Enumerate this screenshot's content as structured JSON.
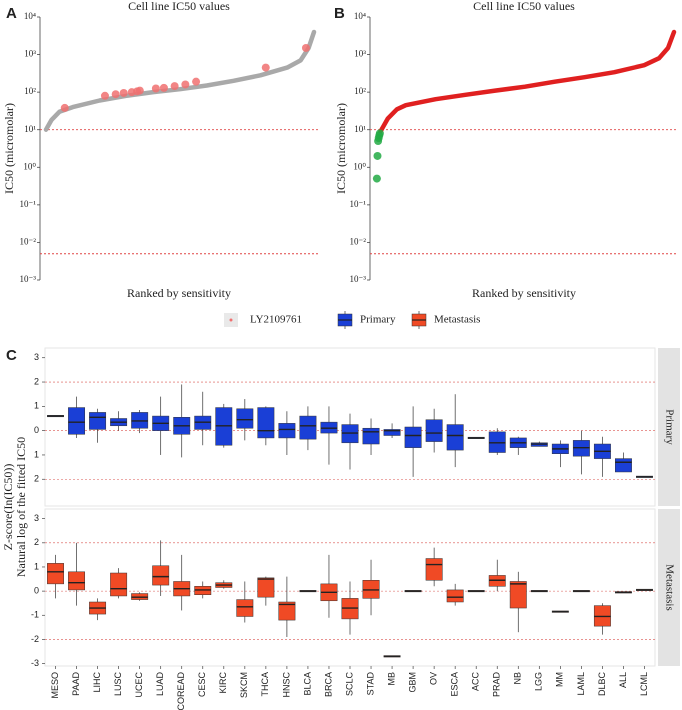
{
  "chart_data": [
    {
      "type": "line",
      "panel": "A",
      "title": "Cell line IC50 values",
      "xlabel": "Ranked by sensitivity",
      "ylabel": "IC50 (micromolar)",
      "log_y": true,
      "ylim": [
        0.001,
        10000
      ],
      "xlim": [
        0,
        100
      ],
      "yticks": [
        {
          "value": 0.001,
          "label": "10⁻³"
        },
        {
          "value": 0.01,
          "label": "10⁻²"
        },
        {
          "value": 0.1,
          "label": "10⁻¹"
        },
        {
          "value": 1,
          "label": "10⁰"
        },
        {
          "value": 10,
          "label": "10¹"
        },
        {
          "value": 100,
          "label": "10²"
        },
        {
          "value": 1000,
          "label": "10³"
        },
        {
          "value": 10000,
          "label": "10⁴"
        }
      ],
      "ref_lines": [
        10,
        0.005
      ],
      "ref_color": "#e04545",
      "series": [
        {
          "name": "LY2109761",
          "color": "#a9a9a9",
          "style": "line",
          "x": [
            0,
            2,
            5,
            10,
            20,
            30,
            40,
            50,
            60,
            70,
            80,
            90,
            95,
            98,
            100
          ],
          "values": [
            10,
            18,
            30,
            40,
            60,
            80,
            100,
            120,
            150,
            200,
            280,
            450,
            700,
            1500,
            4000
          ]
        },
        {
          "color": "#f07070",
          "style": "points",
          "x": [
            7,
            22,
            26,
            29,
            32,
            34,
            35,
            41,
            44,
            48,
            52,
            56,
            82,
            97
          ],
          "values": [
            38,
            80,
            88,
            95,
            100,
            105,
            110,
            125,
            130,
            145,
            160,
            190,
            450,
            1500
          ]
        }
      ]
    },
    {
      "type": "line",
      "panel": "B",
      "title": "Cell line IC50 values",
      "xlabel": "Ranked by sensitivity",
      "ylabel": "IC50 (micromolar)",
      "log_y": true,
      "ylim": [
        0.001,
        10000
      ],
      "xlim": [
        0,
        100
      ],
      "yticks": [
        {
          "value": 0.001,
          "label": "10⁻³"
        },
        {
          "value": 0.01,
          "label": "10⁻²"
        },
        {
          "value": 0.1,
          "label": "10⁻¹"
        },
        {
          "value": 1,
          "label": "10⁰"
        },
        {
          "value": 10,
          "label": "10¹"
        },
        {
          "value": 100,
          "label": "10²"
        },
        {
          "value": 1000,
          "label": "10³"
        },
        {
          "value": 10000,
          "label": "10⁴"
        }
      ],
      "ref_lines": [
        10,
        0.005
      ],
      "ref_color": "#e04545",
      "series": [
        {
          "color": "#e02020",
          "style": "line",
          "x": [
            1.5,
            4,
            7,
            10,
            20,
            30,
            40,
            50,
            60,
            70,
            80,
            90,
            95,
            98,
            100
          ],
          "values": [
            9,
            20,
            35,
            45,
            65,
            85,
            110,
            140,
            190,
            250,
            340,
            520,
            800,
            1500,
            4000
          ]
        },
        {
          "color": "#22aa44",
          "style": "points",
          "x": [
            0.3,
            0.5,
            0.7,
            0.9,
            1.1,
            1.3
          ],
          "values": [
            0.5,
            2,
            5,
            6,
            7,
            8
          ]
        }
      ]
    },
    {
      "type": "box",
      "panel": "C",
      "ylabel": [
        "Z-score(In(IC50))",
        "Natural log of the fitted IC50"
      ],
      "ylim": [
        -3.1,
        3.4
      ],
      "ref_lines": [
        2,
        0,
        -2
      ],
      "ref_color": "#d9534f",
      "categories": [
        "MESO",
        "PAAD",
        "LIHC",
        "LUSC",
        "UCEC",
        "LUAD",
        "COREAD",
        "CESC",
        "KIRC",
        "SKCM",
        "THCA",
        "HNSC",
        "BLCA",
        "BRCA",
        "SCLC",
        "STAD",
        "MB",
        "GBM",
        "OV",
        "ESCA",
        "ACC",
        "PRAD",
        "NB",
        "LGG",
        "MM",
        "LAML",
        "DLBC",
        "ALL",
        "LCML"
      ],
      "facets": [
        {
          "name": "Primary",
          "color": "#1a3fd6",
          "yticks": [
            {
              "value": -2,
              "label": "2"
            },
            {
              "value": -1,
              "label": "1"
            },
            0,
            1,
            2,
            3
          ],
          "low": [
            0.6,
            -0.3,
            -0.5,
            0.0,
            -0.1,
            -1.0,
            -1.1,
            -0.6,
            -0.7,
            -0.4,
            -0.6,
            -1.0,
            -0.8,
            -1.4,
            -1.6,
            -1.0,
            -0.3,
            -1.9,
            -0.9,
            -1.5,
            -0.3,
            -1.0,
            -1.0,
            -0.65,
            -1.5,
            -1.8,
            -1.9,
            -1.7,
            -1.9
          ],
          "q1": [
            0.6,
            -0.15,
            0.05,
            0.2,
            0.1,
            0.0,
            -0.15,
            0.05,
            -0.6,
            0.1,
            -0.3,
            -0.3,
            -0.35,
            -0.1,
            -0.5,
            -0.55,
            -0.2,
            -0.7,
            -0.45,
            -0.8,
            -0.3,
            -0.9,
            -0.7,
            -0.65,
            -0.95,
            -1.05,
            -1.15,
            -1.7,
            -1.9
          ],
          "median": [
            0.6,
            0.35,
            0.55,
            0.35,
            0.4,
            0.3,
            0.2,
            0.35,
            0.2,
            0.45,
            0.0,
            0.05,
            0.2,
            0.1,
            -0.1,
            -0.05,
            0.0,
            -0.2,
            -0.1,
            -0.2,
            -0.3,
            -0.5,
            -0.5,
            -0.55,
            -0.75,
            -0.7,
            -0.85,
            -1.3,
            -1.9
          ],
          "q3": [
            0.6,
            0.95,
            0.75,
            0.5,
            0.75,
            0.6,
            0.55,
            0.6,
            0.95,
            0.9,
            0.95,
            0.3,
            0.6,
            0.35,
            0.25,
            0.1,
            0.05,
            0.15,
            0.45,
            0.25,
            -0.3,
            -0.05,
            -0.3,
            -0.5,
            -0.55,
            -0.4,
            -0.55,
            -1.15,
            -1.9
          ],
          "high": [
            0.6,
            1.4,
            0.9,
            0.8,
            0.85,
            1.4,
            1.9,
            1.6,
            1.1,
            1.3,
            1.0,
            0.8,
            1.0,
            1.0,
            0.7,
            0.5,
            0.3,
            1.0,
            0.9,
            1.5,
            -0.3,
            0.1,
            -0.25,
            -0.45,
            -0.4,
            0.0,
            -0.25,
            -0.9,
            -1.9
          ]
        },
        {
          "name": "Metastasis",
          "color": "#f04a25",
          "yticks": [
            -3,
            -2,
            -1,
            0,
            1,
            2,
            3
          ],
          "low": [
            -0.3,
            -0.6,
            -1.2,
            -0.3,
            -0.4,
            -0.2,
            -0.8,
            -0.3,
            0.1,
            -1.3,
            -0.6,
            -1.9,
            0,
            -1.1,
            -1.8,
            -1.0,
            -2.7,
            0,
            0.2,
            -0.6,
            0,
            0.0,
            -1.7,
            0,
            -0.85,
            0,
            -1.8,
            -0.05,
            0.05
          ],
          "q1": [
            0.3,
            0.05,
            -0.95,
            -0.2,
            -0.35,
            0.25,
            -0.2,
            -0.15,
            0.15,
            -1.05,
            -0.25,
            -1.2,
            0,
            -0.4,
            -1.15,
            -0.3,
            -2.7,
            0,
            0.45,
            -0.45,
            0,
            0.2,
            -0.7,
            0,
            -0.85,
            0,
            -1.45,
            -0.05,
            0.05
          ],
          "median": [
            0.8,
            0.35,
            -0.7,
            0.1,
            -0.25,
            0.6,
            0.1,
            0.05,
            0.25,
            -0.65,
            0.5,
            -0.55,
            0,
            -0.05,
            -0.7,
            0.05,
            -2.7,
            0,
            1.1,
            -0.25,
            0,
            0.45,
            0.3,
            0,
            -0.85,
            0,
            -1.05,
            -0.05,
            0.05
          ],
          "q3": [
            1.15,
            0.8,
            -0.45,
            0.75,
            -0.1,
            1.05,
            0.4,
            0.2,
            0.35,
            -0.35,
            0.55,
            -0.45,
            0,
            0.3,
            -0.3,
            0.45,
            -2.7,
            0,
            1.35,
            0.05,
            0,
            0.65,
            0.4,
            0,
            -0.85,
            0,
            -0.6,
            -0.05,
            0.05
          ],
          "high": [
            1.5,
            2.0,
            -0.3,
            0.95,
            -0.05,
            2.1,
            1.5,
            0.4,
            0.45,
            0.4,
            0.6,
            0.6,
            0,
            1.5,
            0.4,
            1.3,
            -2.7,
            0,
            1.8,
            0.3,
            0,
            1.3,
            0.8,
            0,
            -0.85,
            0,
            -0.5,
            -0.05,
            0.05
          ]
        }
      ]
    }
  ]
}
